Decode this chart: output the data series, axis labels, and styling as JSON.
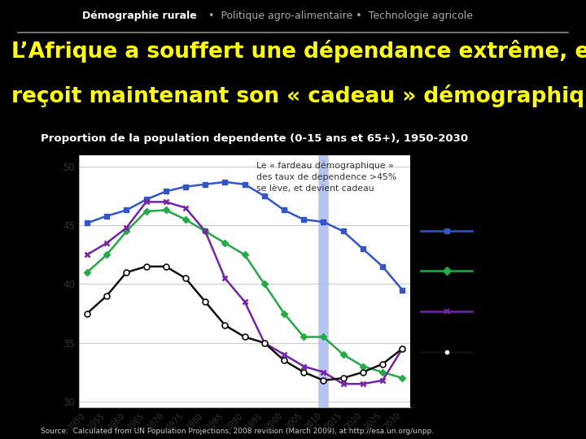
{
  "bg_color": "#000000",
  "header_text": "Démographie rurale  •  Politique agro-alimentaire •  Technologie agricole",
  "header_color": "#bbbbbb",
  "header_bold": "Démographie rurale",
  "title_line1": "L’Afrique a souffert une dépendance extrême, et",
  "title_line2": "reçoit maintenant son « cadeau » démographique",
  "title_color": "#ffff00",
  "subtitle": "Proportion de la population dependente (0-15 ans et 65+), 1950-2030",
  "chart_bg": "#ffffff",
  "annotation": "Le « fardeau démographique »\ndes taux de dependence >45%\nse lève, et devient cadeau",
  "source": "Source:  Calculated from UN Population Projections, 2008 revision (March 2009), at http://esa.un.org/unpp.",
  "years": [
    1950,
    1955,
    1960,
    1965,
    1970,
    1975,
    1980,
    1985,
    1990,
    1995,
    2000,
    2005,
    2010,
    2015,
    2020,
    2025,
    2030
  ],
  "ss_africa": [
    45.2,
    45.8,
    46.3,
    47.2,
    47.9,
    48.3,
    48.5,
    48.7,
    48.5,
    47.5,
    46.3,
    45.5,
    45.3,
    44.5,
    43.0,
    41.5,
    39.5
  ],
  "s_asia": [
    41.0,
    42.5,
    44.5,
    46.2,
    46.3,
    45.5,
    44.5,
    43.5,
    42.5,
    40.0,
    37.5,
    35.5,
    35.5,
    34.0,
    33.0,
    32.5,
    32.0
  ],
  "se_asia": [
    42.5,
    43.5,
    44.8,
    47.0,
    47.0,
    46.5,
    44.5,
    40.5,
    38.5,
    35.0,
    34.0,
    33.0,
    32.5,
    31.5,
    31.5,
    31.8,
    34.5
  ],
  "rest_world": [
    37.5,
    39.0,
    41.0,
    41.5,
    41.5,
    40.5,
    38.5,
    36.5,
    35.5,
    35.0,
    33.5,
    32.5,
    31.8,
    32.0,
    32.5,
    33.2,
    34.5
  ],
  "ss_africa_color": "#3355cc",
  "s_asia_color": "#22aa44",
  "se_asia_color": "#7722aa",
  "rest_world_color": "#111111",
  "vline_x": 2010,
  "vline_color": "#aabbee",
  "ylim": [
    29.5,
    51.0
  ],
  "yticks": [
    30,
    35,
    40,
    45,
    50
  ]
}
